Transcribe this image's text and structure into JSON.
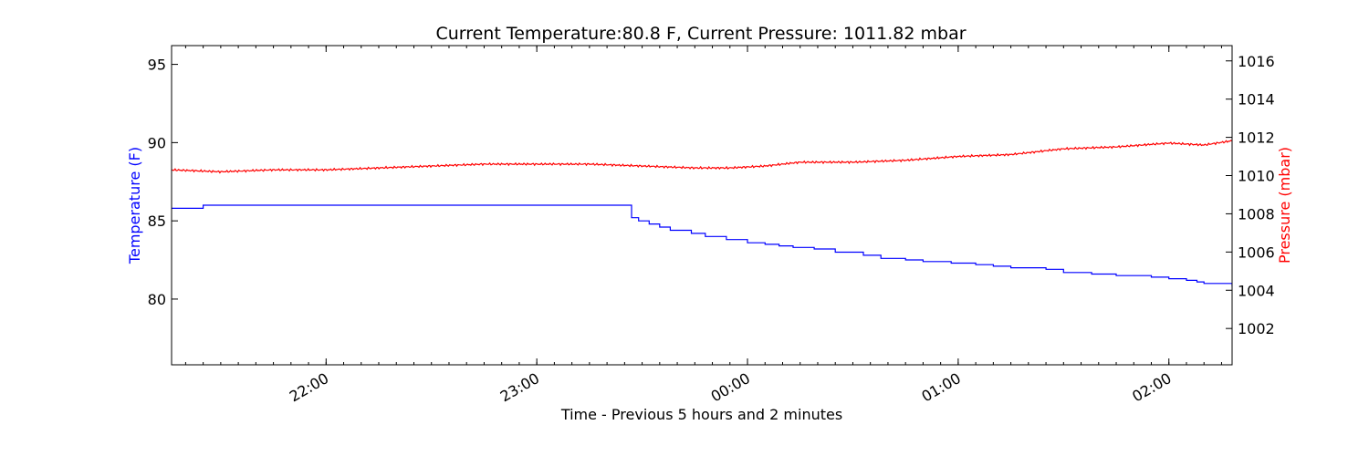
{
  "chart_data": {
    "type": "line",
    "title": "Current Temperature:80.8 F, Current Pressure: 1011.82 mbar",
    "xlabel": "Time - Previous 5 hours and 2 minutes",
    "ylabel_left": "Temperature (F)",
    "ylabel_right": "Pressure (mbar)",
    "x_range": [
      "21:16",
      "02:18"
    ],
    "x_ticks": [
      "22:00",
      "23:00",
      "00:00",
      "01:00",
      "02:00"
    ],
    "y_left_lim": [
      75.8,
      96.2
    ],
    "y_left_ticks": [
      "80",
      "85",
      "90",
      "95"
    ],
    "y_right_lim": [
      1000.1,
      1016.8
    ],
    "y_right_ticks": [
      "1002",
      "1004",
      "1006",
      "1008",
      "1010",
      "1012",
      "1014",
      "1016"
    ],
    "grid": false,
    "legend": "none",
    "colors": {
      "temperature": "#0000ff",
      "pressure": "#ff0000"
    },
    "series": [
      {
        "key": "temperature",
        "axis": "left",
        "x": [
          "21:16",
          "21:25",
          "21:25",
          "21:52",
          "21:52",
          "22:00",
          "22:30",
          "22:59",
          "23:25",
          "23:25",
          "23:27",
          "23:29",
          "23:32",
          "23:35",
          "23:38",
          "23:44",
          "23:48",
          "23:54",
          "24:00",
          "24:05",
          "24:09",
          "24:13",
          "24:19",
          "24:25",
          "24:33",
          "24:38",
          "24:45",
          "24:50",
          "24:58",
          "25:05",
          "25:10",
          "25:15",
          "25:25",
          "25:30",
          "25:38",
          "25:45",
          "25:55",
          "26:00",
          "26:05",
          "26:08",
          "26:10",
          "26:18"
        ],
        "y": [
          85.8,
          85.8,
          86.0,
          86.0,
          86.0,
          86.0,
          86.0,
          86.0,
          86.0,
          86.0,
          85.2,
          85.0,
          84.8,
          84.6,
          84.4,
          84.2,
          84.0,
          83.8,
          83.6,
          83.5,
          83.4,
          83.3,
          83.2,
          83.0,
          82.8,
          82.6,
          82.5,
          82.4,
          82.3,
          82.2,
          82.1,
          82.0,
          81.9,
          81.7,
          81.6,
          81.5,
          81.4,
          81.3,
          81.2,
          81.1,
          81.0,
          80.8
        ]
      },
      {
        "key": "pressure",
        "axis": "right",
        "x": [
          "21:16",
          "21:30",
          "21:45",
          "22:00",
          "22:15",
          "22:30",
          "22:45",
          "23:00",
          "23:15",
          "23:30",
          "23:45",
          "23:55",
          "24:05",
          "24:15",
          "24:30",
          "24:45",
          "25:00",
          "25:15",
          "25:30",
          "25:45",
          "26:00",
          "26:10",
          "26:18"
        ],
        "y": [
          1010.3,
          1010.2,
          1010.3,
          1010.3,
          1010.4,
          1010.5,
          1010.6,
          1010.6,
          1010.6,
          1010.5,
          1010.4,
          1010.4,
          1010.5,
          1010.7,
          1010.7,
          1010.8,
          1011.0,
          1011.1,
          1011.4,
          1011.5,
          1011.7,
          1011.6,
          1011.82
        ]
      }
    ]
  }
}
